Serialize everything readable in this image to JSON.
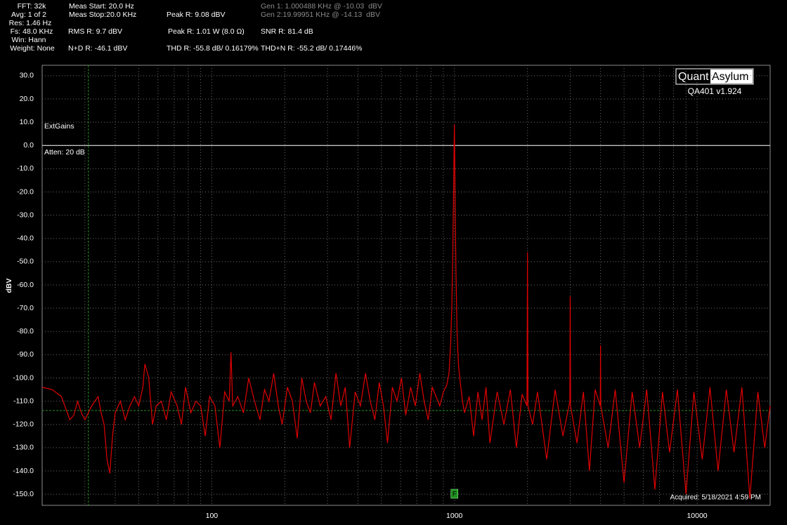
{
  "info": [
    "FFT: 32k",
    "Avg: 1 of 2",
    "Res: 1.46 Hz",
    "Fs: 48.0 KHz",
    "Win: Hann",
    "Weight: None",
    "Meas Start: 20.0 Hz",
    "Meas Stop:20.0 KHz",
    "RMS R: 9.7 dBV",
    "N+D R: -46.1 dBV",
    "Peak R: 9.08 dBV",
    "Peak R: 1.01 W (8.0 Ω)",
    "THD R: -55.8 dB/ 0.16179%",
    "Gen 1: 1.000488 KHz @ -10.03  dBV",
    "Gen 2:19.99951 KHz @ -14.13  dBV",
    "SNR R: 81.4 dB",
    "THD+N R: -55.2 dB/ 0.17446%"
  ],
  "chart_data": {
    "type": "line",
    "ylabel": "dBV",
    "xscale": "log",
    "grid": true,
    "xlim": [
      20,
      20000
    ],
    "ylim": [
      -154.8,
      34.5
    ],
    "xticks": [
      100,
      1000,
      10000
    ],
    "xminorticks": [
      30,
      40,
      50,
      60,
      70,
      80,
      90,
      200,
      300,
      400,
      500,
      600,
      700,
      800,
      900,
      2000,
      3000,
      4000,
      5000,
      6000,
      7000,
      8000,
      9000
    ],
    "yticks": [
      {
        "value": 30,
        "label": "30.0"
      },
      {
        "value": 20,
        "label": "20.0"
      },
      {
        "value": 10,
        "label": "10.0"
      },
      {
        "value": 0,
        "label": "0.0"
      },
      {
        "value": -10,
        "label": "-10.0"
      },
      {
        "value": -20,
        "label": "-20.0"
      },
      {
        "value": -30,
        "label": "-30.0"
      },
      {
        "value": -40,
        "label": "-40.0"
      },
      {
        "value": -50,
        "label": "-50.0"
      },
      {
        "value": -60,
        "label": "-60.0"
      },
      {
        "value": -70,
        "label": "-70.0"
      },
      {
        "value": -80,
        "label": "-80.0"
      },
      {
        "value": -90,
        "label": "-90.0"
      },
      {
        "value": -100,
        "label": "-100.0"
      },
      {
        "value": -110,
        "label": "-110.0"
      },
      {
        "value": -120,
        "label": "-120.0"
      },
      {
        "value": -130,
        "label": "-130.0"
      },
      {
        "value": -140,
        "label": "-140.0"
      },
      {
        "value": -150,
        "label": "-150.0"
      }
    ],
    "reference_line": 0,
    "reference_color": "#ffffff",
    "marker_y": -114,
    "marker_x": 31,
    "marker_color": "#1f8f1f",
    "freq_marker": {
      "x": 1000,
      "label": "F"
    },
    "annotations": [
      "ExtGains",
      "Atten: 20 dB"
    ],
    "logo": [
      "Quant",
      "Asylum"
    ],
    "version": "QA401 v1.924",
    "acquired": "Acquired: 5/18/2021  4:59 PM",
    "series": [
      {
        "color": "#e00000",
        "x": [
          20,
          22,
          24,
          25,
          26,
          27,
          28,
          29,
          30,
          32,
          34,
          35,
          36,
          37,
          38,
          39,
          40,
          42,
          44,
          46,
          48,
          50,
          52,
          53,
          55,
          57,
          59,
          62,
          65,
          68,
          72,
          75,
          78,
          82,
          86,
          90,
          94,
          98,
          103,
          108,
          113,
          118,
          120,
          122,
          128,
          135,
          142,
          150,
          158,
          165,
          172,
          180,
          188,
          195,
          205,
          215,
          225,
          235,
          245,
          255,
          265,
          280,
          295,
          310,
          325,
          340,
          355,
          370,
          390,
          410,
          430,
          450,
          470,
          490,
          510,
          530,
          555,
          580,
          605,
          630,
          660,
          690,
          720,
          750,
          780,
          810,
          840,
          870,
          900,
          930,
          950,
          965,
          975,
          985,
          992,
          997,
          1000,
          1003,
          1008,
          1015,
          1025,
          1040,
          1060,
          1080,
          1100,
          1150,
          1200,
          1250,
          1300,
          1350,
          1400,
          1500,
          1600,
          1700,
          1800,
          1900,
          1990,
          2000,
          2010,
          2100,
          2200,
          2400,
          2600,
          2800,
          2990,
          3000,
          3010,
          3200,
          3400,
          3600,
          3800,
          3990,
          4000,
          4010,
          4300,
          4600,
          5000,
          5400,
          5800,
          6200,
          6700,
          7200,
          7700,
          8300,
          9000,
          9700,
          10500,
          11300,
          12200,
          13200,
          14200,
          15300,
          16500,
          17800,
          19000,
          20000
        ],
        "values": [
          -104,
          -105,
          -108,
          -113,
          -118,
          -116,
          -110,
          -115,
          -118,
          -112,
          -108,
          -115,
          -120,
          -135,
          -141,
          -125,
          -115,
          -110,
          -118,
          -112,
          -108,
          -112,
          -104,
          -94,
          -100,
          -120,
          -112,
          -110,
          -118,
          -106,
          -112,
          -120,
          -104,
          -115,
          -110,
          -112,
          -125,
          -108,
          -112,
          -130,
          -106,
          -110,
          -89,
          -112,
          -108,
          -115,
          -100,
          -110,
          -118,
          -105,
          -110,
          -98,
          -112,
          -120,
          -104,
          -110,
          -126,
          -100,
          -110,
          -115,
          -102,
          -112,
          -108,
          -118,
          -98,
          -112,
          -104,
          -130,
          -106,
          -112,
          -98,
          -110,
          -118,
          -102,
          -112,
          -128,
          -104,
          -110,
          -100,
          -116,
          -104,
          -112,
          -98,
          -110,
          -118,
          -104,
          -108,
          -112,
          -106,
          -103,
          -98,
          -85,
          -70,
          -45,
          -20,
          0,
          9.08,
          -5,
          -30,
          -55,
          -80,
          -95,
          -103,
          -110,
          -115,
          -108,
          -125,
          -106,
          -118,
          -104,
          -128,
          -106,
          -120,
          -105,
          -130,
          -107,
          -112,
          -46,
          -112,
          -120,
          -106,
          -135,
          -105,
          -125,
          -110,
          -65,
          -112,
          -128,
          -106,
          -140,
          -105,
          -112,
          -86,
          -112,
          -130,
          -105,
          -145,
          -106,
          -130,
          -105,
          -148,
          -106,
          -132,
          -105,
          -150,
          -106,
          -135,
          -104,
          -140,
          -105,
          -132,
          -104,
          -152,
          -106,
          -130,
          -112
        ]
      }
    ]
  }
}
